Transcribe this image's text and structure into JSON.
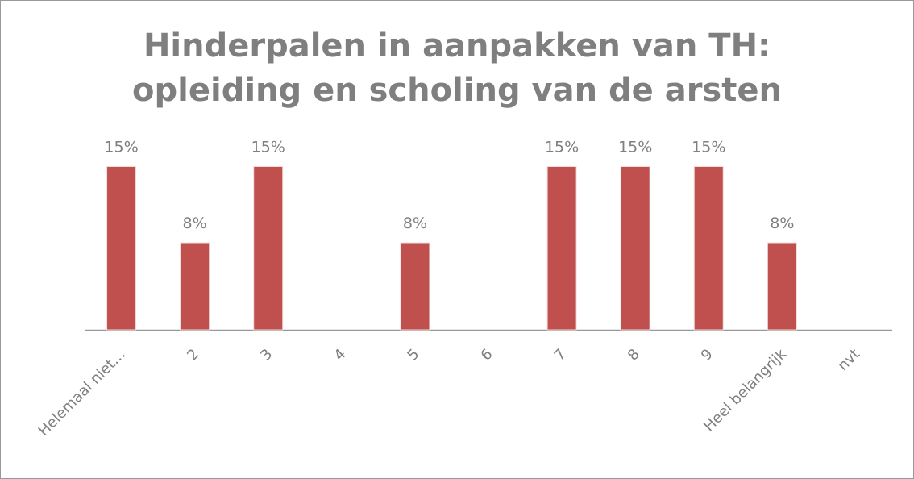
{
  "chart_data": {
    "type": "bar",
    "title": [
      "Hinderpalen in aanpakken van TH:",
      "opleiding en scholing van de arsten"
    ],
    "categories": [
      "Helemaal niet…",
      "2",
      "3",
      "4",
      "5",
      "6",
      "7",
      "8",
      "9",
      "Heel belangrijk",
      "nvt"
    ],
    "values": [
      15,
      8,
      15,
      null,
      8,
      null,
      15,
      15,
      15,
      8,
      null
    ],
    "value_labels": [
      "15%",
      "8%",
      "15%",
      null,
      "8%",
      null,
      "15%",
      "15%",
      "15%",
      "8%",
      null
    ],
    "color": "#c0504d"
  }
}
